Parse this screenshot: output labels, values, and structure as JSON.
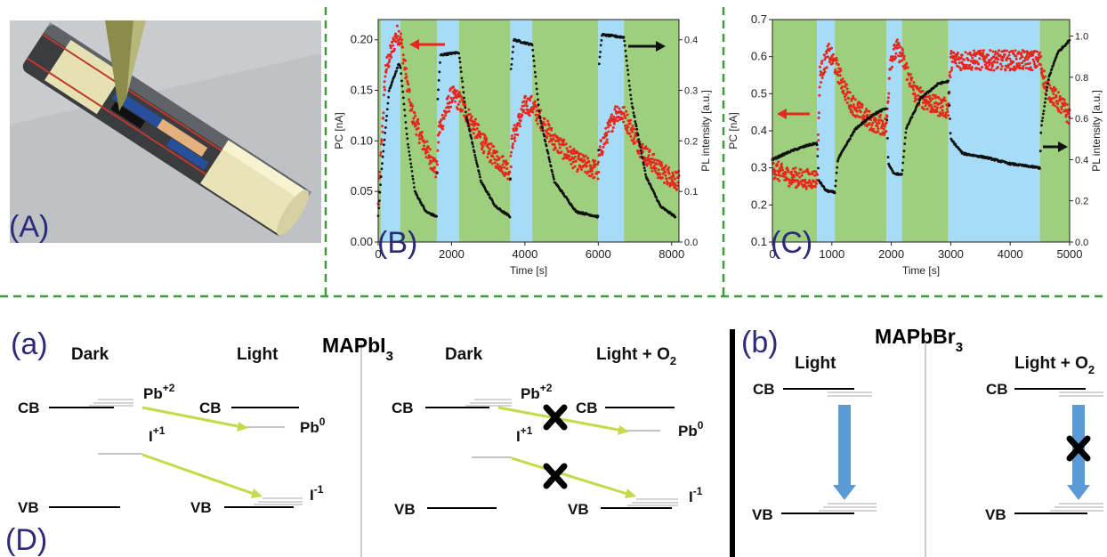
{
  "panels": {
    "A": "(A)",
    "B": "(B)",
    "C": "(C)",
    "D": "(D)",
    "a": "(a)",
    "b": "(b)"
  },
  "colors": {
    "green": "#9dcf7f",
    "blue": "#a6dcf7",
    "pc": "#e8261c",
    "pl": "#111111",
    "frame_dash": "#3f9a3c",
    "arrow_yellow": "#c5d94a",
    "arrow_blue": "#5b9bd5"
  },
  "chart_data": [
    {
      "type": "scatter",
      "panel": "(B)",
      "xlabel": "Time [s]",
      "ylabel": "PC [nA]",
      "y2label": "PL intensity [a.u.]",
      "xlim": [
        0,
        8200
      ],
      "ylim": [
        0.0,
        0.22
      ],
      "y2lim": [
        0.0,
        0.44
      ],
      "xticks": [
        "0",
        "2000",
        "4000",
        "6000",
        "8000"
      ],
      "yticks": [
        "0.00",
        "0.05",
        "0.10",
        "0.15",
        "0.20"
      ],
      "y2ticks": [
        "0.0",
        "0.1",
        "0.2",
        "0.3",
        "0.4"
      ],
      "bands": [
        {
          "from": 0,
          "to": 80,
          "color": "green"
        },
        {
          "from": 80,
          "to": 600,
          "color": "blue"
        },
        {
          "from": 600,
          "to": 1600,
          "color": "green"
        },
        {
          "from": 1600,
          "to": 2200,
          "color": "blue"
        },
        {
          "from": 2200,
          "to": 3600,
          "color": "green"
        },
        {
          "from": 3600,
          "to": 4200,
          "color": "blue"
        },
        {
          "from": 4200,
          "to": 6000,
          "color": "green"
        },
        {
          "from": 6000,
          "to": 6700,
          "color": "blue"
        },
        {
          "from": 6700,
          "to": 8200,
          "color": "green"
        }
      ],
      "series": [
        {
          "axis": "left",
          "color": "pc",
          "points": [
            [
              0,
              0.035
            ],
            [
              200,
              0.17
            ],
            [
              500,
              0.205
            ],
            [
              600,
              0.205
            ],
            [
              900,
              0.13
            ],
            [
              1200,
              0.1
            ],
            [
              1600,
              0.07
            ],
            [
              1650,
              0.11
            ],
            [
              2000,
              0.145
            ],
            [
              2200,
              0.14
            ],
            [
              2600,
              0.115
            ],
            [
              3000,
              0.09
            ],
            [
              3600,
              0.07
            ],
            [
              3650,
              0.1
            ],
            [
              4000,
              0.135
            ],
            [
              4200,
              0.135
            ],
            [
              4800,
              0.1
            ],
            [
              5400,
              0.08
            ],
            [
              6000,
              0.07
            ],
            [
              6050,
              0.09
            ],
            [
              6500,
              0.13
            ],
            [
              6700,
              0.125
            ],
            [
              7200,
              0.09
            ],
            [
              7700,
              0.07
            ],
            [
              8200,
              0.06
            ]
          ]
        },
        {
          "axis": "right",
          "color": "pl",
          "points": [
            [
              0,
              0.05
            ],
            [
              100,
              0.15
            ],
            [
              300,
              0.3
            ],
            [
              550,
              0.35
            ],
            [
              600,
              0.35
            ],
            [
              800,
              0.2
            ],
            [
              1000,
              0.1
            ],
            [
              1300,
              0.06
            ],
            [
              1600,
              0.05
            ],
            [
              1620,
              0.28
            ],
            [
              1700,
              0.37
            ],
            [
              2200,
              0.375
            ],
            [
              2400,
              0.25
            ],
            [
              2800,
              0.12
            ],
            [
              3200,
              0.07
            ],
            [
              3600,
              0.05
            ],
            [
              3620,
              0.34
            ],
            [
              3700,
              0.4
            ],
            [
              4200,
              0.39
            ],
            [
              4400,
              0.25
            ],
            [
              4800,
              0.12
            ],
            [
              5400,
              0.06
            ],
            [
              6000,
              0.05
            ],
            [
              6020,
              0.35
            ],
            [
              6100,
              0.41
            ],
            [
              6700,
              0.405
            ],
            [
              6900,
              0.28
            ],
            [
              7300,
              0.13
            ],
            [
              7700,
              0.07
            ],
            [
              8100,
              0.05
            ]
          ]
        }
      ]
    },
    {
      "type": "scatter",
      "panel": "(C)",
      "xlabel": "Time [s]",
      "ylabel": "PC [nA]",
      "y2label": "PL intensity [a.u.]",
      "xlim": [
        0,
        5000
      ],
      "ylim": [
        0.1,
        0.7
      ],
      "y2lim": [
        0.0,
        1.08
      ],
      "xticks": [
        "0",
        "1000",
        "2000",
        "3000",
        "4000",
        "5000"
      ],
      "yticks": [
        "0.1",
        "0.2",
        "0.3",
        "0.4",
        "0.5",
        "0.6",
        "0.7"
      ],
      "y2ticks": [
        "0.0",
        "0.2",
        "0.4",
        "0.6",
        "0.8",
        "1.0"
      ],
      "bands": [
        {
          "from": 0,
          "to": 750,
          "color": "green"
        },
        {
          "from": 750,
          "to": 1050,
          "color": "blue"
        },
        {
          "from": 1050,
          "to": 1920,
          "color": "green"
        },
        {
          "from": 1920,
          "to": 2180,
          "color": "blue"
        },
        {
          "from": 2180,
          "to": 2960,
          "color": "green"
        },
        {
          "from": 2960,
          "to": 4500,
          "color": "blue"
        },
        {
          "from": 4500,
          "to": 5000,
          "color": "green"
        }
      ],
      "series": [
        {
          "axis": "left",
          "color": "pc",
          "points": [
            [
              0,
              0.3
            ],
            [
              200,
              0.28
            ],
            [
              500,
              0.27
            ],
            [
              750,
              0.27
            ],
            [
              800,
              0.55
            ],
            [
              950,
              0.61
            ],
            [
              1050,
              0.58
            ],
            [
              1300,
              0.48
            ],
            [
              1600,
              0.43
            ],
            [
              1920,
              0.41
            ],
            [
              1980,
              0.59
            ],
            [
              2100,
              0.62
            ],
            [
              2180,
              0.6
            ],
            [
              2400,
              0.5
            ],
            [
              2700,
              0.47
            ],
            [
              2960,
              0.46
            ],
            [
              3000,
              0.59
            ],
            [
              3500,
              0.59
            ],
            [
              4000,
              0.59
            ],
            [
              4500,
              0.59
            ],
            [
              4600,
              0.52
            ],
            [
              4800,
              0.48
            ],
            [
              5000,
              0.44
            ]
          ]
        },
        {
          "axis": "right",
          "color": "pl",
          "points": [
            [
              0,
              0.4
            ],
            [
              300,
              0.44
            ],
            [
              600,
              0.47
            ],
            [
              750,
              0.48
            ],
            [
              780,
              0.3
            ],
            [
              900,
              0.25
            ],
            [
              1050,
              0.24
            ],
            [
              1100,
              0.4
            ],
            [
              1400,
              0.55
            ],
            [
              1700,
              0.62
            ],
            [
              1920,
              0.65
            ],
            [
              1950,
              0.38
            ],
            [
              2050,
              0.33
            ],
            [
              2180,
              0.33
            ],
            [
              2250,
              0.55
            ],
            [
              2500,
              0.7
            ],
            [
              2800,
              0.77
            ],
            [
              2960,
              0.78
            ],
            [
              3000,
              0.5
            ],
            [
              3200,
              0.43
            ],
            [
              3600,
              0.41
            ],
            [
              4000,
              0.38
            ],
            [
              4500,
              0.36
            ],
            [
              4520,
              0.55
            ],
            [
              4650,
              0.8
            ],
            [
              4800,
              0.92
            ],
            [
              5000,
              0.98
            ]
          ]
        }
      ]
    }
  ],
  "diagram": {
    "title_left": "MAPbI",
    "title_left_sub": "3",
    "title_right": "MAPbBr",
    "title_right_sub": "3",
    "dark1": "Dark",
    "light1": "Light",
    "dark2": "Dark",
    "light2": "Light  + O",
    "light2_sub": "2",
    "light3": "Light",
    "light4": "Light  + O",
    "light4_sub": "2",
    "cb": "CB",
    "vb": "VB",
    "pb2": "Pb",
    "pb2_sup": "+2",
    "pb0": "Pb",
    "pb0_sup": "0",
    "i1": "I",
    "i1_sup": "+1",
    "im1": "I",
    "im1_sup": "-1"
  }
}
